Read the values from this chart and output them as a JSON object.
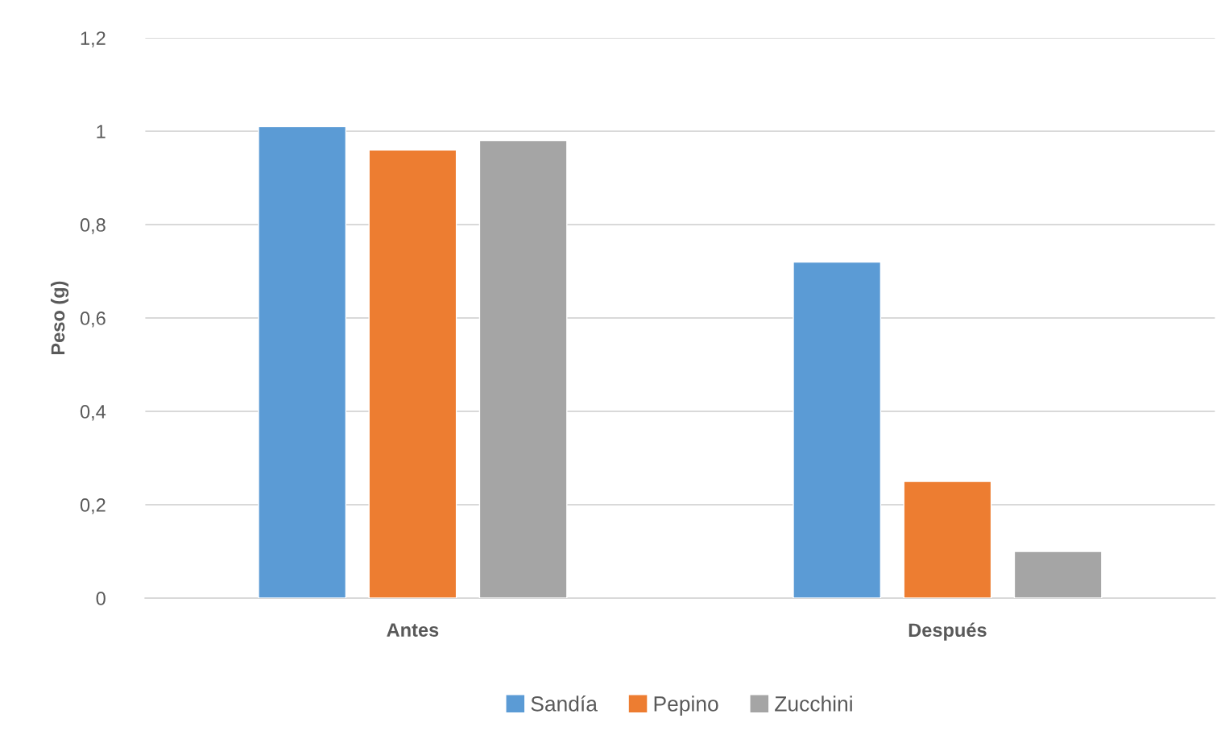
{
  "chart_data": {
    "type": "bar",
    "ylabel": "Peso (g)",
    "categories": [
      "Antes",
      "Después"
    ],
    "series": [
      {
        "name": "Sandía",
        "color": "#5b9bd5",
        "values": [
          1.01,
          0.72
        ]
      },
      {
        "name": "Pepino",
        "color": "#ed7d31",
        "values": [
          0.96,
          0.25
        ]
      },
      {
        "name": "Zucchini",
        "color": "#a5a5a5",
        "values": [
          0.98,
          0.1
        ]
      }
    ],
    "ylim": [
      0,
      1.2
    ],
    "yticks": [
      0,
      {
        "value": 0.2,
        "label": "0,2"
      },
      {
        "value": 0.4,
        "label": "0,4"
      },
      {
        "value": 0.6,
        "label": "0,6"
      },
      {
        "value": 0.8,
        "label": "0,8"
      },
      1,
      {
        "value": 1.2,
        "label": "1,2"
      }
    ],
    "grid": "y",
    "legend": "bottom"
  }
}
